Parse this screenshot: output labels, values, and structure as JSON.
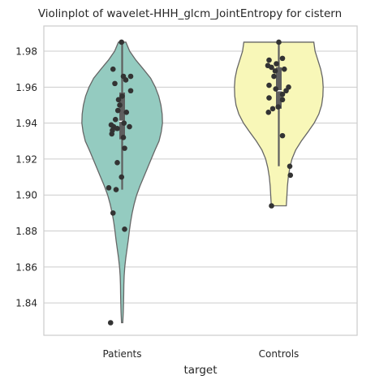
{
  "chart_data": {
    "type": "violin",
    "title": "Violinplot of wavelet-HHH_glcm_JointEntropy for cistern",
    "xlabel": "target",
    "ylabel": "",
    "categories": [
      "Patients",
      "Controls"
    ],
    "ylim": [
      1.822,
      1.994
    ],
    "yticks": [
      1.84,
      1.86,
      1.88,
      1.9,
      1.92,
      1.94,
      1.96,
      1.98
    ],
    "ytick_labels": [
      "1.84",
      "1.86",
      "1.88",
      "1.90",
      "1.92",
      "1.94",
      "1.96",
      "1.98"
    ],
    "grid": true,
    "colors": {
      "Patients": "#94cbc0",
      "Controls": "#f8f7b8",
      "outline": "#666666",
      "box": "#5e5e5e",
      "points": "#333333",
      "grid": "#cccccc",
      "frame": "#cccccc"
    },
    "violins": [
      {
        "name": "Patients",
        "min": 1.829,
        "max": 1.985,
        "q1": 1.931,
        "median": 1.941,
        "q3": 1.957,
        "whisker_low": 1.903,
        "whisker_high": 1.985,
        "density": [
          [
            1.829,
            0.01
          ],
          [
            1.835,
            0.018
          ],
          [
            1.84,
            0.022
          ],
          [
            1.845,
            0.025
          ],
          [
            1.85,
            0.027
          ],
          [
            1.855,
            0.032
          ],
          [
            1.86,
            0.042
          ],
          [
            1.865,
            0.058
          ],
          [
            1.87,
            0.078
          ],
          [
            1.875,
            0.098
          ],
          [
            1.88,
            0.115
          ],
          [
            1.885,
            0.135
          ],
          [
            1.89,
            0.16
          ],
          [
            1.895,
            0.192
          ],
          [
            1.9,
            0.232
          ],
          [
            1.905,
            0.285
          ],
          [
            1.91,
            0.345
          ],
          [
            1.915,
            0.405
          ],
          [
            1.92,
            0.465
          ],
          [
            1.925,
            0.525
          ],
          [
            1.93,
            0.59
          ],
          [
            1.935,
            0.625
          ],
          [
            1.94,
            0.645
          ],
          [
            1.945,
            0.64
          ],
          [
            1.95,
            0.62
          ],
          [
            1.955,
            0.585
          ],
          [
            1.96,
            0.53
          ],
          [
            1.965,
            0.455
          ],
          [
            1.97,
            0.34
          ],
          [
            1.975,
            0.22
          ],
          [
            1.98,
            0.12
          ],
          [
            1.985,
            0.06
          ]
        ],
        "points": [
          [
            1.985,
            -0.005
          ],
          [
            1.97,
            -0.075
          ],
          [
            1.966,
            0.01
          ],
          [
            1.966,
            0.07
          ],
          [
            1.964,
            0.03
          ],
          [
            1.962,
            -0.06
          ],
          [
            1.958,
            0.07
          ],
          [
            1.955,
            0.0
          ],
          [
            1.953,
            -0.03
          ],
          [
            1.95,
            -0.02
          ],
          [
            1.947,
            -0.035
          ],
          [
            1.946,
            0.035
          ],
          [
            1.942,
            -0.055
          ],
          [
            1.94,
            0.015
          ],
          [
            1.939,
            -0.09
          ],
          [
            1.938,
            -0.07
          ],
          [
            1.938,
            0.06
          ],
          [
            1.937,
            -0.04
          ],
          [
            1.936,
            -0.08
          ],
          [
            1.934,
            -0.085
          ],
          [
            1.932,
            0.01
          ],
          [
            1.926,
            0.02
          ],
          [
            1.918,
            -0.04
          ],
          [
            1.91,
            -0.005
          ],
          [
            1.904,
            -0.11
          ],
          [
            1.903,
            -0.05
          ],
          [
            1.89,
            -0.075
          ],
          [
            1.881,
            0.02
          ],
          [
            1.829,
            -0.095
          ]
        ]
      },
      {
        "name": "Controls",
        "min": 1.894,
        "max": 1.985,
        "q1": 1.948,
        "median": 1.958,
        "q3": 1.971,
        "whisker_low": 1.916,
        "whisker_high": 1.985,
        "density": [
          [
            1.894,
            0.12
          ],
          [
            1.9,
            0.13
          ],
          [
            1.905,
            0.138
          ],
          [
            1.91,
            0.152
          ],
          [
            1.915,
            0.175
          ],
          [
            1.92,
            0.21
          ],
          [
            1.925,
            0.27
          ],
          [
            1.93,
            0.36
          ],
          [
            1.935,
            0.465
          ],
          [
            1.94,
            0.565
          ],
          [
            1.945,
            0.64
          ],
          [
            1.95,
            0.685
          ],
          [
            1.955,
            0.705
          ],
          [
            1.96,
            0.71
          ],
          [
            1.965,
            0.7
          ],
          [
            1.97,
            0.67
          ],
          [
            1.975,
            0.625
          ],
          [
            1.98,
            0.58
          ],
          [
            1.985,
            0.56
          ]
        ],
        "points": [
          [
            1.985,
            0.0
          ],
          [
            1.976,
            0.03
          ],
          [
            1.975,
            -0.08
          ],
          [
            1.973,
            -0.02
          ],
          [
            1.972,
            -0.09
          ],
          [
            1.971,
            -0.06
          ],
          [
            1.97,
            0.045
          ],
          [
            1.969,
            -0.03
          ],
          [
            1.966,
            -0.04
          ],
          [
            1.961,
            -0.08
          ],
          [
            1.96,
            0.08
          ],
          [
            1.959,
            -0.025
          ],
          [
            1.958,
            0.06
          ],
          [
            1.956,
            0.03
          ],
          [
            1.954,
            -0.08
          ],
          [
            1.953,
            0.03
          ],
          [
            1.949,
            -0.005
          ],
          [
            1.948,
            -0.05
          ],
          [
            1.946,
            -0.085
          ],
          [
            1.933,
            0.03
          ],
          [
            1.916,
            0.09
          ],
          [
            1.911,
            0.095
          ],
          [
            1.894,
            -0.06
          ]
        ]
      }
    ]
  }
}
